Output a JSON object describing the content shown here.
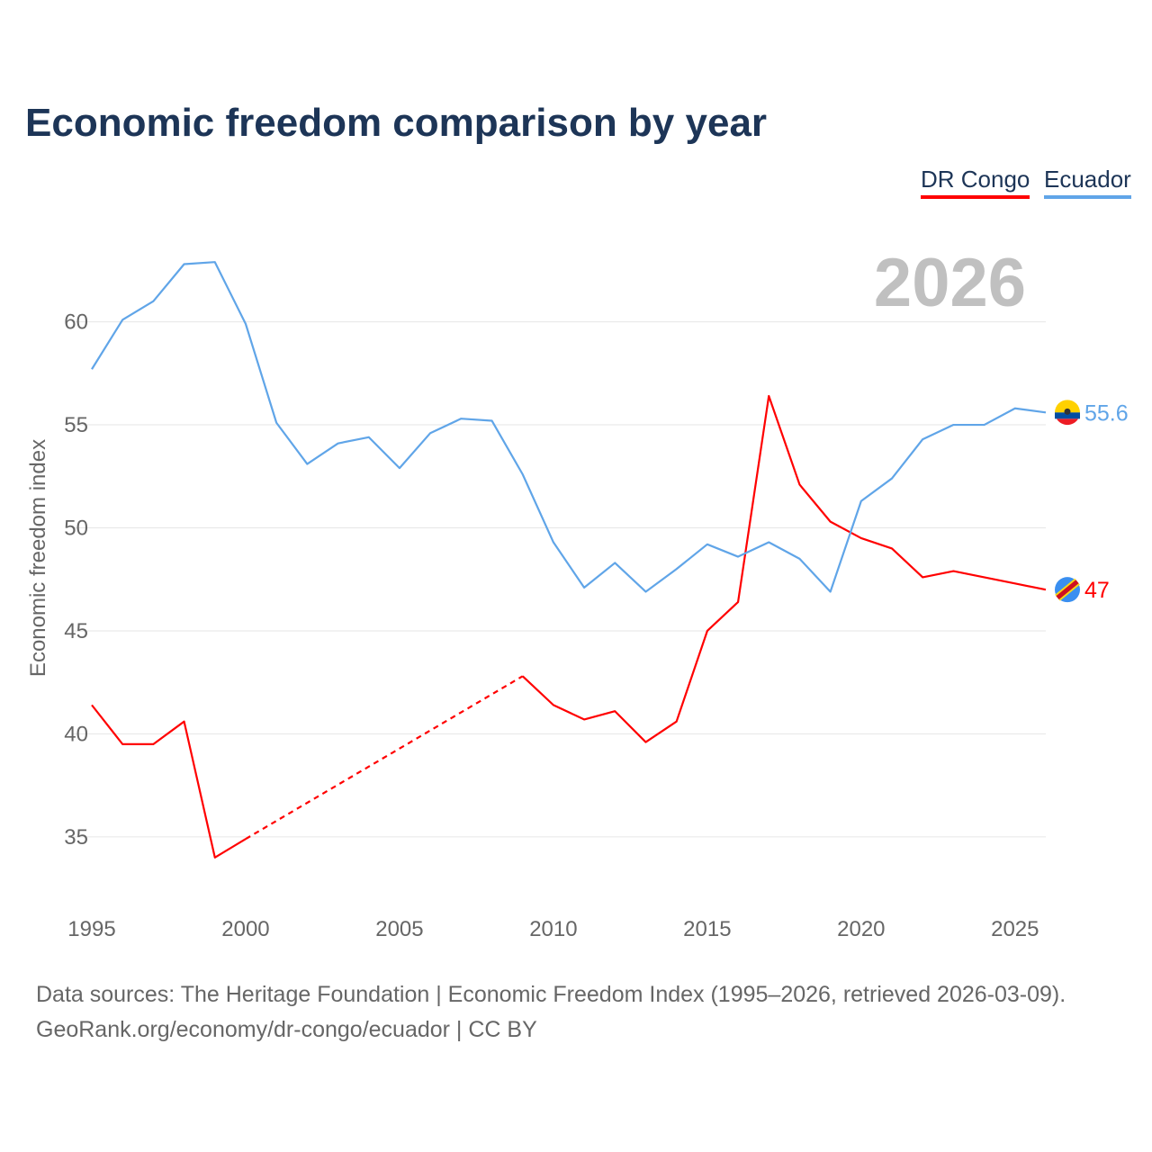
{
  "title": "Economic freedom comparison by year",
  "legend": [
    {
      "name": "DR Congo",
      "color": "#ff0000"
    },
    {
      "name": "Ecuador",
      "color": "#60a5e8"
    }
  ],
  "year_watermark": "2026",
  "footer": {
    "line1": "Data sources: The Heritage Foundation | Economic Freedom Index (1995–2026, retrieved 2026-03-09).",
    "line2": "GeoRank.org/economy/dr-congo/ecuador | CC BY"
  },
  "chart_data": {
    "type": "line",
    "title": "Economic freedom comparison by year",
    "xlabel": "",
    "ylabel": "Economic freedom index",
    "xlim": [
      1995,
      2026
    ],
    "ylim": [
      31.5,
      64.7
    ],
    "xticks": [
      1995,
      2000,
      2005,
      2010,
      2015,
      2020,
      2025
    ],
    "yticks": [
      35,
      40,
      45,
      50,
      55,
      60
    ],
    "grid": true,
    "legend_position": "top-right",
    "x": [
      1995,
      1996,
      1997,
      1998,
      1999,
      2000,
      2001,
      2002,
      2003,
      2004,
      2005,
      2006,
      2007,
      2008,
      2009,
      2010,
      2011,
      2012,
      2013,
      2014,
      2015,
      2016,
      2017,
      2018,
      2019,
      2020,
      2021,
      2022,
      2023,
      2024,
      2025,
      2026
    ],
    "series": [
      {
        "name": "DR Congo",
        "color": "#ff0000",
        "end_label": "47",
        "values": [
          41.4,
          39.5,
          39.5,
          40.6,
          34.0,
          34.9,
          null,
          null,
          null,
          null,
          null,
          null,
          null,
          null,
          42.8,
          41.4,
          40.7,
          41.1,
          39.6,
          40.6,
          45.0,
          46.4,
          56.4,
          52.1,
          50.3,
          49.5,
          49.0,
          47.6,
          47.9,
          47.6,
          47.3,
          47.0
        ]
      },
      {
        "name": "Ecuador",
        "color": "#60a5e8",
        "end_label": "55.6",
        "values": [
          57.7,
          60.1,
          61.0,
          62.8,
          62.9,
          59.9,
          55.1,
          53.1,
          54.1,
          54.4,
          52.9,
          54.6,
          55.3,
          55.2,
          52.6,
          49.3,
          47.1,
          48.3,
          46.9,
          48.0,
          49.2,
          48.6,
          49.3,
          48.5,
          46.9,
          51.3,
          52.4,
          54.3,
          55.0,
          55.0,
          55.8,
          55.6
        ]
      }
    ]
  }
}
